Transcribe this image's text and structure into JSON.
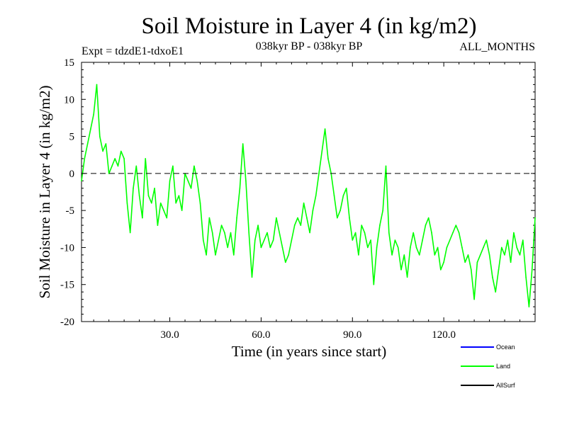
{
  "chart_data": {
    "type": "line",
    "title": "Soil Moisture in Layer 4 (in kg/m2)",
    "experiment": "Expt = tdzdE1-tdxoE1",
    "period": "038kyr BP - 038kyr BP",
    "months": "ALL_MONTHS",
    "xlabel": "Time (in years since start)",
    "ylabel": "Soil Moisture in Layer 4 (in kg/m2)",
    "xlim": [
      1,
      150
    ],
    "ylim": [
      -20,
      15
    ],
    "xticks": [
      30,
      60,
      90,
      120
    ],
    "xtick_labels": [
      "30.0",
      "60.0",
      "90.0",
      "120.0"
    ],
    "yticks": [
      15,
      10,
      5,
      0,
      -5,
      -10,
      -15,
      -20
    ],
    "ytick_labels": [
      "15",
      "10",
      "5",
      "0",
      "-5",
      "-10",
      "-15",
      "-20"
    ],
    "reference_line": 0,
    "legend": [
      {
        "name": "Ocean",
        "color": "#0000ff"
      },
      {
        "name": "Land",
        "color": "#00ff00"
      },
      {
        "name": "AllSurf",
        "color": "#000000"
      }
    ],
    "series": [
      {
        "name": "Land",
        "color": "#00ff00",
        "x": [
          1,
          2,
          3,
          4,
          5,
          6,
          7,
          8,
          9,
          10,
          11,
          12,
          13,
          14,
          15,
          16,
          17,
          18,
          19,
          20,
          21,
          22,
          23,
          24,
          25,
          26,
          27,
          28,
          29,
          30,
          31,
          32,
          33,
          34,
          35,
          36,
          37,
          38,
          39,
          40,
          41,
          42,
          43,
          44,
          45,
          46,
          47,
          48,
          49,
          50,
          51,
          52,
          53,
          54,
          55,
          56,
          57,
          58,
          59,
          60,
          61,
          62,
          63,
          64,
          65,
          66,
          67,
          68,
          69,
          70,
          71,
          72,
          73,
          74,
          75,
          76,
          77,
          78,
          79,
          80,
          81,
          82,
          83,
          84,
          85,
          86,
          87,
          88,
          89,
          90,
          91,
          92,
          93,
          94,
          95,
          96,
          97,
          98,
          99,
          100,
          101,
          102,
          103,
          104,
          105,
          106,
          107,
          108,
          109,
          110,
          111,
          112,
          113,
          114,
          115,
          116,
          117,
          118,
          119,
          120,
          121,
          122,
          123,
          124,
          125,
          126,
          127,
          128,
          129,
          130,
          131,
          132,
          133,
          134,
          135,
          136,
          137,
          138,
          139,
          140,
          141,
          142,
          143,
          144,
          145,
          146,
          147,
          148,
          149,
          150
        ],
        "values": [
          -1,
          2,
          4,
          6,
          8,
          12,
          5,
          3,
          4,
          0,
          1,
          2,
          1,
          3,
          2,
          -4,
          -8,
          -2,
          1,
          -3,
          -6,
          2,
          -3,
          -4,
          -2,
          -7,
          -4,
          -5,
          -6,
          -1,
          1,
          -4,
          -3,
          -5,
          0,
          -1,
          -2,
          1,
          -1,
          -4,
          -9,
          -11,
          -6,
          -8,
          -11,
          -9,
          -7,
          -8,
          -10,
          -8,
          -11,
          -6,
          -2,
          4,
          -1,
          -8,
          -14,
          -9,
          -7,
          -10,
          -9,
          -8,
          -10,
          -9,
          -6,
          -8,
          -10,
          -12,
          -11,
          -9,
          -7,
          -6,
          -7,
          -4,
          -6,
          -8,
          -5,
          -3,
          0,
          3,
          6,
          2,
          0,
          -3,
          -6,
          -5,
          -3,
          -2,
          -6,
          -9,
          -8,
          -11,
          -7,
          -8,
          -10,
          -9,
          -15,
          -10,
          -7,
          -5,
          1,
          -8,
          -11,
          -9,
          -10,
          -13,
          -11,
          -14,
          -10,
          -8,
          -10,
          -11,
          -9,
          -7,
          -6,
          -8,
          -11,
          -10,
          -13,
          -12,
          -10,
          -9,
          -8,
          -7,
          -8,
          -10,
          -12,
          -11,
          -13,
          -17,
          -12,
          -11,
          -10,
          -9,
          -11,
          -14,
          -16,
          -13,
          -10,
          -11,
          -9,
          -12,
          -8,
          -10,
          -11,
          -9,
          -14,
          -18,
          -13,
          -6
        ]
      }
    ]
  }
}
